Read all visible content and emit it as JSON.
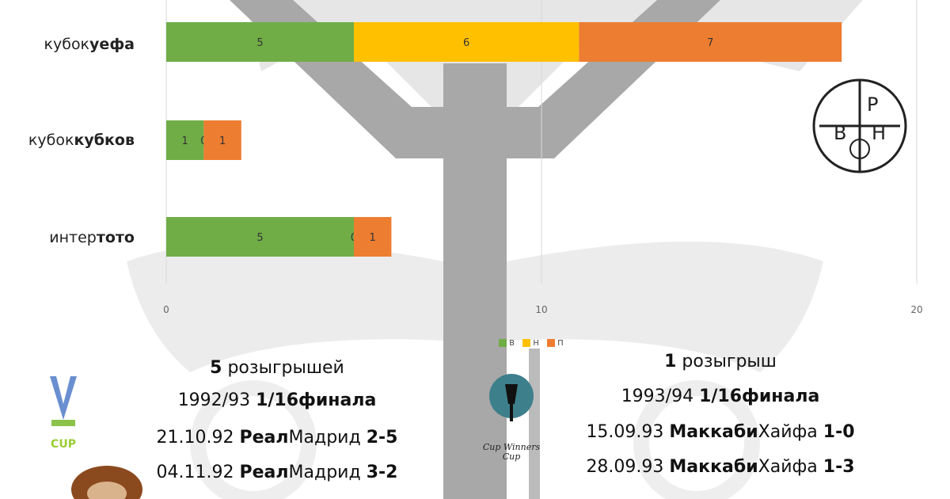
{
  "chart_data": {
    "type": "bar",
    "orientation": "horizontal",
    "stacked": true,
    "categories": [
      {
        "normal": "кубок",
        "bold": "уефа"
      },
      {
        "normal": "кубок",
        "bold": "кубков"
      },
      {
        "normal": "интер",
        "bold": "тото"
      }
    ],
    "series": [
      {
        "name": "в",
        "color": "#70ad47",
        "values": [
          5,
          1,
          5
        ]
      },
      {
        "name": "н",
        "color": "#ffc000",
        "values": [
          6,
          0,
          0
        ]
      },
      {
        "name": "п",
        "color": "#ed7d31",
        "values": [
          7,
          1,
          1
        ]
      }
    ],
    "xlim": [
      0,
      20
    ],
    "xticks": [
      "0",
      "10",
      "20"
    ],
    "grid": true,
    "legend": "bottom"
  },
  "logo": {
    "letters": [
      "В",
      "Р",
      "Н"
    ]
  },
  "left_block": {
    "count_num": "5",
    "count_text": "розыгрышей",
    "season": "1992/93",
    "round": "1/16финала",
    "matches": [
      {
        "date": "21.10.92",
        "team_bold": "Реал",
        "team_normal": "Мадрид",
        "score": "2-5"
      },
      {
        "date": "04.11.92",
        "team_bold": "Реал",
        "team_normal": "Мадрид",
        "score": "3-2"
      }
    ],
    "logo_text": "UEFA CUP"
  },
  "right_block": {
    "count_num": "1",
    "count_text": "розыгрыш",
    "season": "1993/94",
    "round": "1/16финала",
    "matches": [
      {
        "date": "15.09.93",
        "team_bold": "Маккаби",
        "team_normal": "Хайфа",
        "score": "1-0"
      },
      {
        "date": "28.09.93",
        "team_bold": "Маккаби",
        "team_normal": "Хайфа",
        "score": "1-3"
      }
    ],
    "logo_text": "Cup Winners Cup"
  }
}
